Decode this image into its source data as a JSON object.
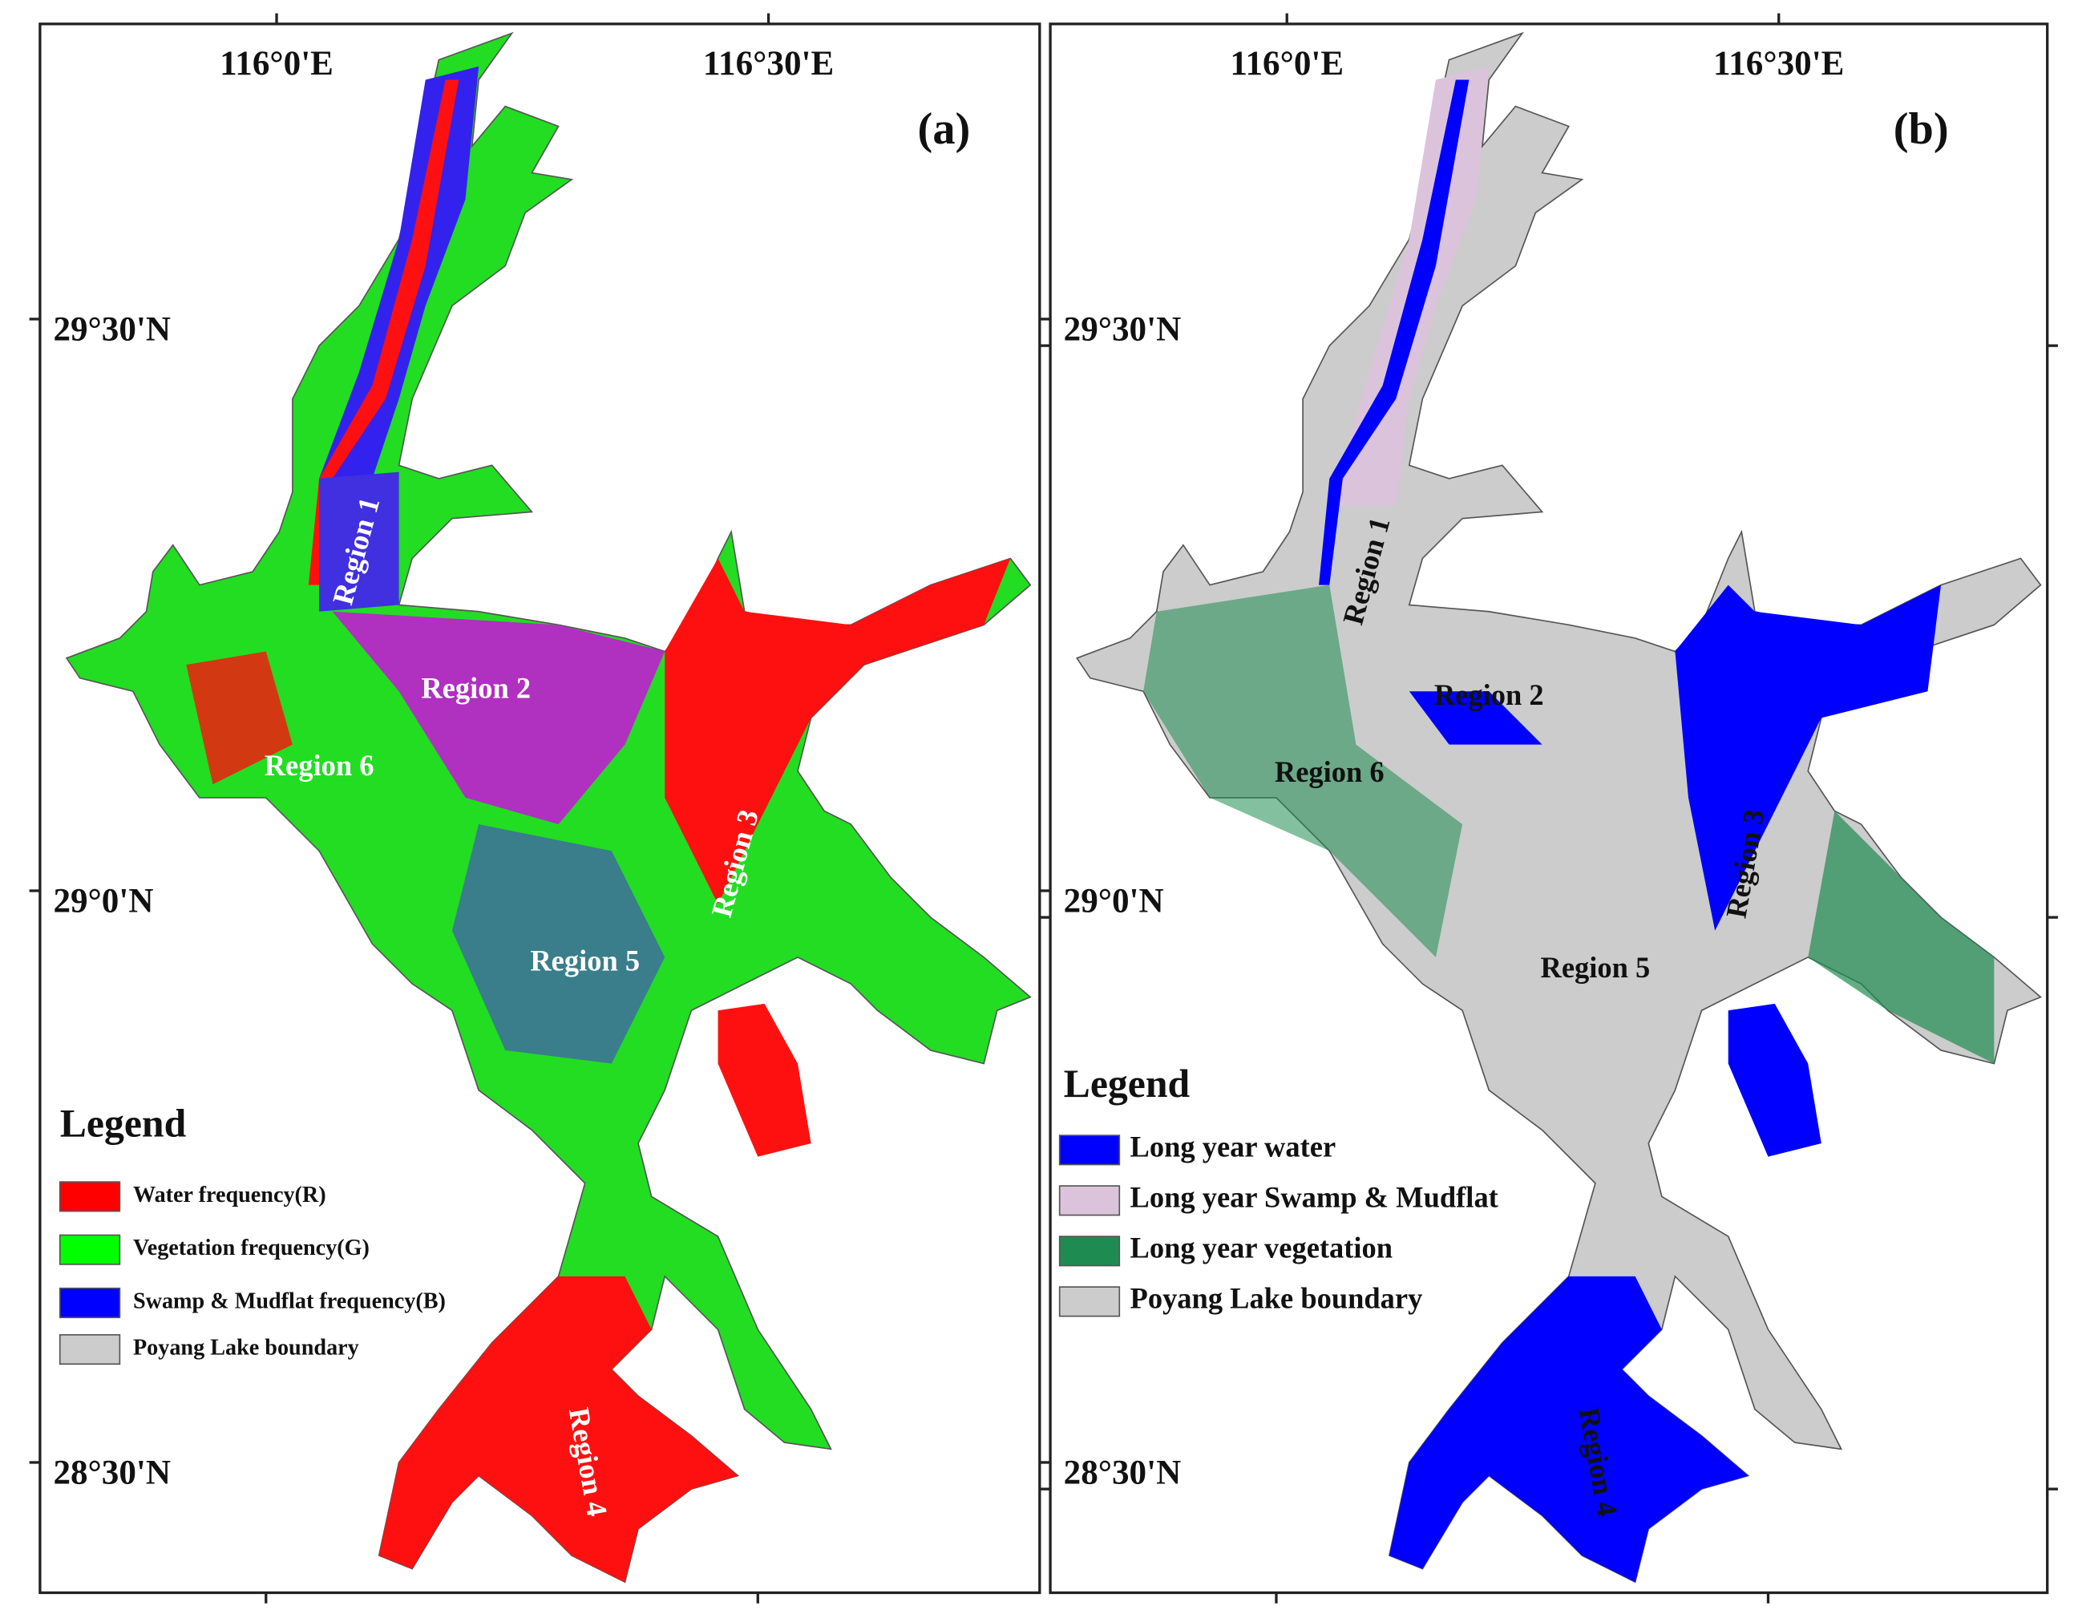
{
  "panels": [
    {
      "label": "(a)",
      "lon_labels": [
        "116°0'E",
        "116°30'E"
      ],
      "lat_labels": [
        "29°30'N",
        "29°0'N",
        "28°30'N"
      ],
      "regions": [
        "Region 1",
        "Region 2",
        "Region 3",
        "Region 4",
        "Region 5",
        "Region 6"
      ],
      "legend": {
        "title": "Legend",
        "items": [
          {
            "label": "Water frequency(R)",
            "color": "#ff0000"
          },
          {
            "label": "Vegetation frequency(G)",
            "color": "#00ff00"
          },
          {
            "label": "Swamp & Mudflat frequency(B)",
            "color": "#0000ff"
          },
          {
            "label": "Poyang Lake boundary",
            "color": "#cccccc"
          }
        ]
      }
    },
    {
      "label": "(b)",
      "lon_labels": [
        "116°0'E",
        "116°30'E"
      ],
      "lat_labels": [
        "29°30'N",
        "29°0'N",
        "28°30'N"
      ],
      "regions": [
        "Region 1",
        "Region 2",
        "Region 3",
        "Region 4",
        "Region 5",
        "Region 6"
      ],
      "legend": {
        "title": "Legend",
        "items": [
          {
            "label": "Long year water",
            "color": "#0000ff"
          },
          {
            "label": "Long year Swamp & Mudflat",
            "color": "#dcc3dc"
          },
          {
            "label": "Long year vegetation",
            "color": "#1e8c50"
          },
          {
            "label": "Poyang Lake boundary",
            "color": "#cccccc"
          }
        ]
      }
    }
  ]
}
